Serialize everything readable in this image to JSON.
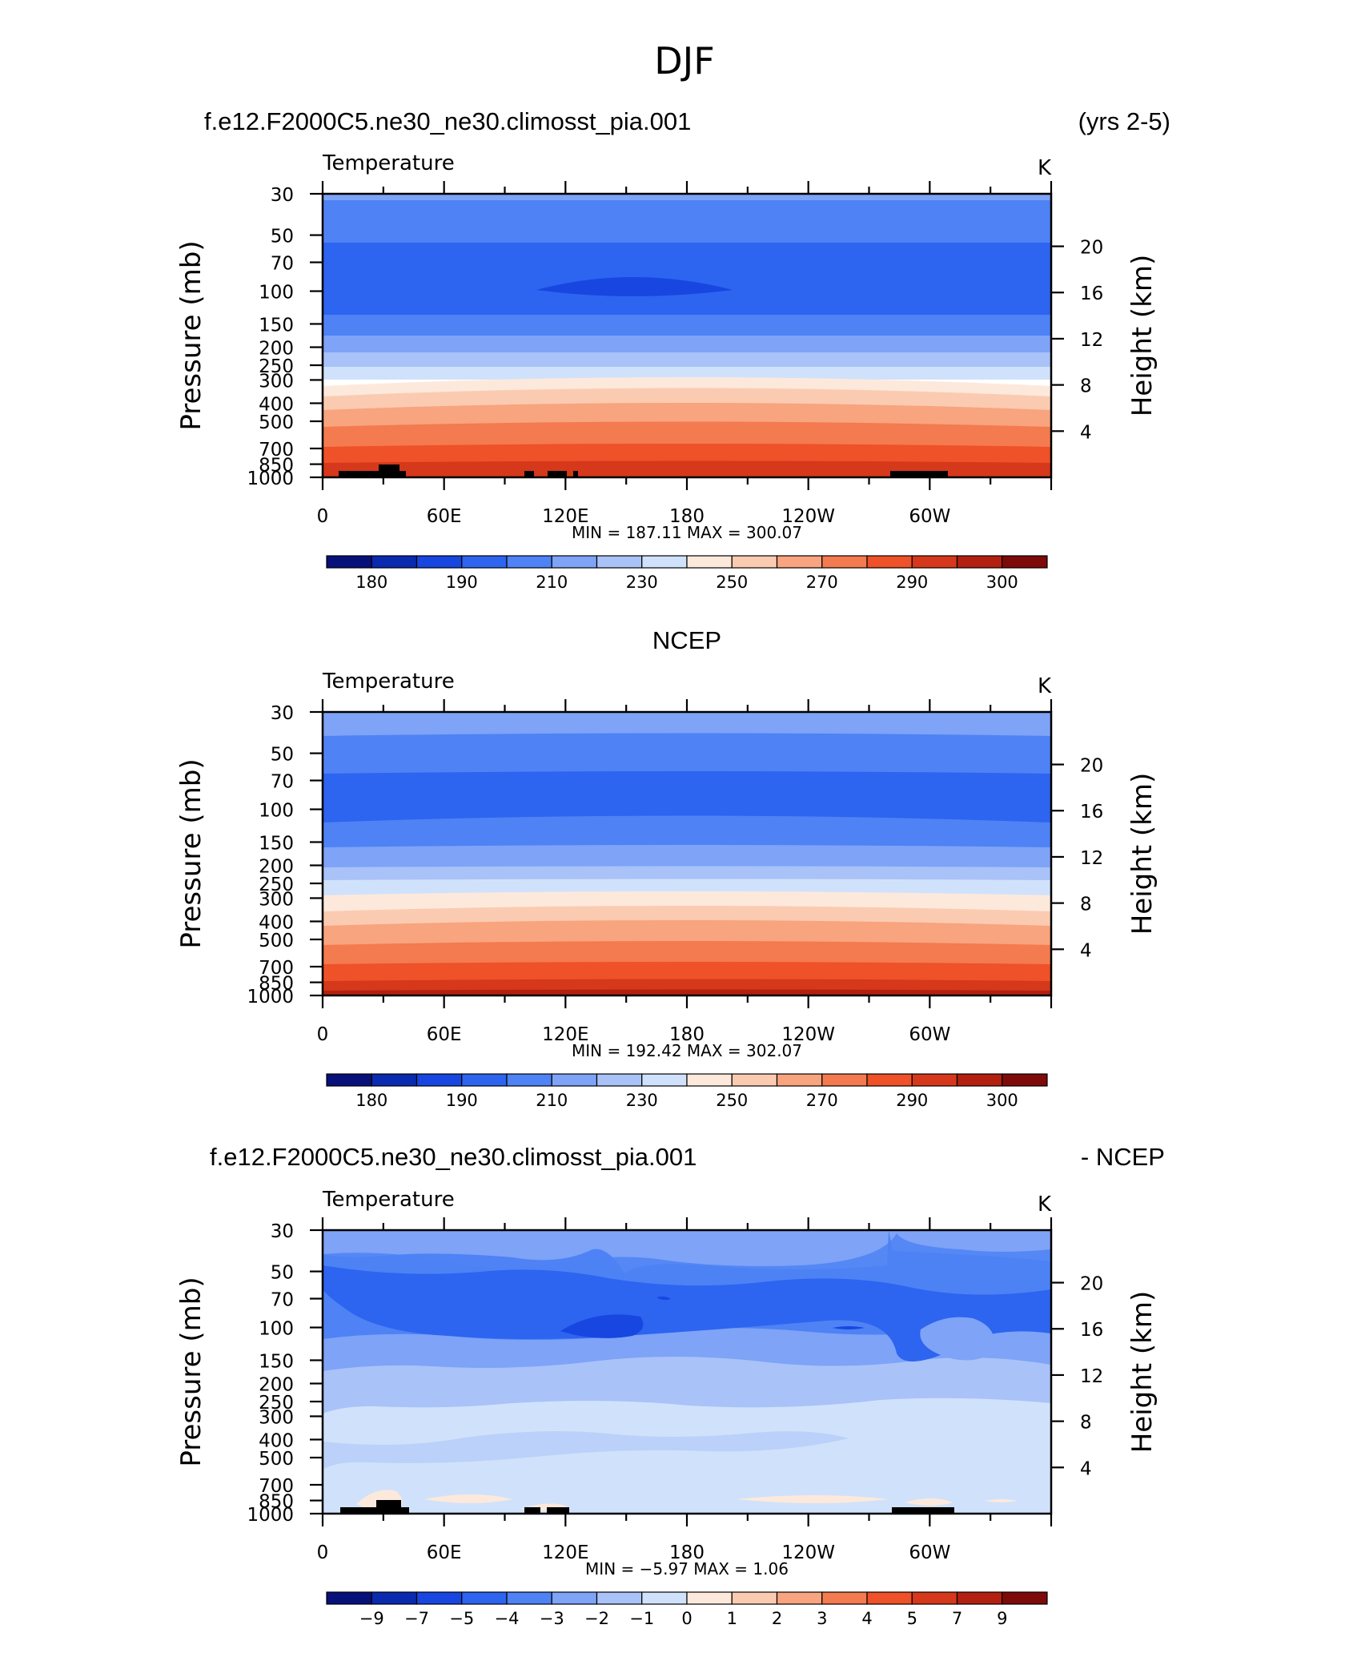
{
  "chart_data": {
    "type": "heatmap",
    "title": "DJF",
    "panels": [
      {
        "id": "model",
        "left_title": "f.e12.F2000C5.ne30_ne30.climosst_pia.001",
        "right_title": "(yrs 2-5)",
        "variable": "Temperature",
        "units": "K",
        "ylabel_left": "Pressure (mb)",
        "ylabel_right": "Height (km)",
        "stats": "MIN =  187.11   MAX =  300.07",
        "pressure_ticks": [
          "30",
          "50",
          "70",
          "100",
          "150",
          "200",
          "250",
          "300",
          "400",
          "500",
          "700",
          "850",
          "1000"
        ],
        "height_ticks": [
          "20",
          "16",
          "12",
          "8",
          "4"
        ],
        "lon_ticks": [
          "0",
          "60E",
          "120E",
          "180",
          "120W",
          "60W"
        ],
        "colorbar_labels": [
          "180",
          "190",
          "210",
          "230",
          "250",
          "270",
          "290",
          "300"
        ]
      },
      {
        "id": "obs",
        "center_title": "NCEP",
        "variable": "Temperature",
        "units": "K",
        "ylabel_left": "Pressure (mb)",
        "ylabel_right": "Height (km)",
        "stats": "MIN =  192.42   MAX =  302.07",
        "pressure_ticks": [
          "30",
          "50",
          "70",
          "100",
          "150",
          "200",
          "250",
          "300",
          "400",
          "500",
          "700",
          "850",
          "1000"
        ],
        "height_ticks": [
          "20",
          "16",
          "12",
          "8",
          "4"
        ],
        "lon_ticks": [
          "0",
          "60E",
          "120E",
          "180",
          "120W",
          "60W"
        ],
        "colorbar_labels": [
          "180",
          "190",
          "210",
          "230",
          "250",
          "270",
          "290",
          "300"
        ]
      },
      {
        "id": "diff",
        "left_title": "f.e12.F2000C5.ne30_ne30.climosst_pia.001",
        "right_title": "- NCEP",
        "variable": "Temperature",
        "units": "K",
        "ylabel_left": "Pressure (mb)",
        "ylabel_right": "Height (km)",
        "stats": "MIN =    −5.97   MAX =      1.06",
        "pressure_ticks": [
          "30",
          "50",
          "70",
          "100",
          "150",
          "200",
          "250",
          "300",
          "400",
          "500",
          "700",
          "850",
          "1000"
        ],
        "height_ticks": [
          "20",
          "16",
          "12",
          "8",
          "4"
        ],
        "lon_ticks": [
          "0",
          "60E",
          "120E",
          "180",
          "120W",
          "60W"
        ],
        "colorbar_labels": [
          "−9",
          "−7",
          "−5",
          "−4",
          "−3",
          "−2",
          "−1",
          "0",
          "1",
          "2",
          "3",
          "4",
          "5",
          "7",
          "9"
        ]
      }
    ]
  },
  "colors": {
    "palette": [
      "#08107a",
      "#0a2ab0",
      "#1746e0",
      "#2d64f0",
      "#4e82f5",
      "#7ea3f7",
      "#a9c2f8",
      "#d0e2fb",
      "#fde9dc",
      "#fbcbb1",
      "#f8a47f",
      "#f47a50",
      "#ef5128",
      "#d5381a",
      "#b32010",
      "#7f0a0a"
    ]
  }
}
